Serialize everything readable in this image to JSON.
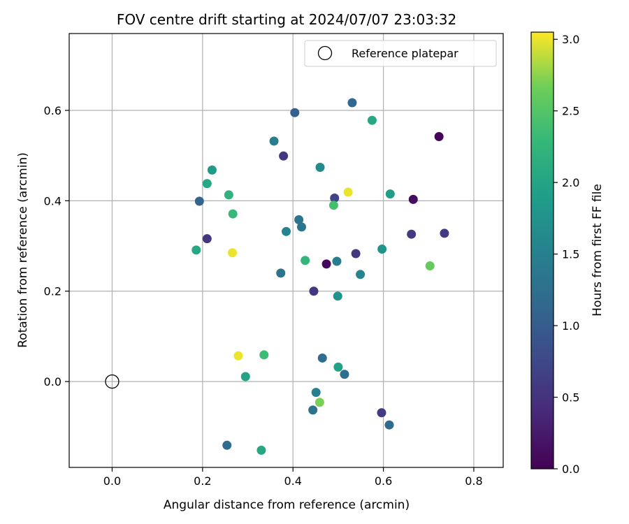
{
  "chart_data": {
    "type": "scatter",
    "title": "FOV centre drift starting at 2024/07/07 23:03:32",
    "xlabel": "Angular distance from reference (arcmin)",
    "ylabel": "Rotation from reference (arcmin)",
    "xlim": [
      -0.095,
      0.865
    ],
    "ylim": [
      -0.19,
      0.77
    ],
    "x_ticks": [
      0.0,
      0.2,
      0.4,
      0.6,
      0.8
    ],
    "x_tick_labels": [
      "0.0",
      "0.2",
      "0.4",
      "0.6",
      "0.8"
    ],
    "y_ticks": [
      0.0,
      0.2,
      0.4,
      0.6
    ],
    "y_tick_labels": [
      "0.0",
      "0.2",
      "0.4",
      "0.6"
    ],
    "grid": true,
    "legend": {
      "position": "upper-right",
      "entries": [
        {
          "label": "Reference platepar",
          "marker": "open-circle"
        }
      ]
    },
    "reference_point": {
      "x": 0.0,
      "y": 0.0
    },
    "colorbar": {
      "label": "Hours from first FF file",
      "colormap": "viridis",
      "range": [
        0.0,
        3.05
      ],
      "ticks": [
        0.0,
        0.5,
        1.0,
        1.5,
        2.0,
        2.5,
        3.0
      ],
      "tick_labels": [
        "0.0",
        "0.5",
        "1.0",
        "1.5",
        "2.0",
        "2.5",
        "3.0"
      ]
    },
    "points": [
      {
        "x": 0.723,
        "y": 0.542,
        "c": 0.05
      },
      {
        "x": 0.474,
        "y": 0.26,
        "c": 0.08
      },
      {
        "x": 0.666,
        "y": 0.403,
        "c": 0.12
      },
      {
        "x": 0.379,
        "y": 0.499,
        "c": 0.55
      },
      {
        "x": 0.735,
        "y": 0.328,
        "c": 0.6
      },
      {
        "x": 0.662,
        "y": 0.326,
        "c": 0.6
      },
      {
        "x": 0.21,
        "y": 0.316,
        "c": 0.55
      },
      {
        "x": 0.539,
        "y": 0.283,
        "c": 0.55
      },
      {
        "x": 0.446,
        "y": 0.2,
        "c": 0.55
      },
      {
        "x": 0.596,
        "y": -0.069,
        "c": 0.6
      },
      {
        "x": 0.492,
        "y": 0.406,
        "c": 0.7
      },
      {
        "x": 0.404,
        "y": 0.595,
        "c": 1.05
      },
      {
        "x": 0.531,
        "y": 0.617,
        "c": 1.15
      },
      {
        "x": 0.193,
        "y": 0.399,
        "c": 1.1
      },
      {
        "x": 0.254,
        "y": -0.141,
        "c": 1.2
      },
      {
        "x": 0.613,
        "y": -0.096,
        "c": 1.2
      },
      {
        "x": 0.465,
        "y": 0.052,
        "c": 1.2
      },
      {
        "x": 0.514,
        "y": 0.016,
        "c": 1.25
      },
      {
        "x": 0.444,
        "y": -0.063,
        "c": 1.3
      },
      {
        "x": 0.373,
        "y": 0.24,
        "c": 1.3
      },
      {
        "x": 0.413,
        "y": 0.358,
        "c": 1.35
      },
      {
        "x": 0.419,
        "y": 0.342,
        "c": 1.35
      },
      {
        "x": 0.358,
        "y": 0.532,
        "c": 1.45
      },
      {
        "x": 0.497,
        "y": 0.266,
        "c": 1.45
      },
      {
        "x": 0.451,
        "y": -0.024,
        "c": 1.5
      },
      {
        "x": 0.385,
        "y": 0.332,
        "c": 1.55
      },
      {
        "x": 0.549,
        "y": 0.237,
        "c": 1.55
      },
      {
        "x": 0.46,
        "y": 0.474,
        "c": 1.65
      },
      {
        "x": 0.597,
        "y": 0.293,
        "c": 1.75
      },
      {
        "x": 0.499,
        "y": 0.189,
        "c": 1.75
      },
      {
        "x": 0.221,
        "y": 0.468,
        "c": 1.85
      },
      {
        "x": 0.615,
        "y": 0.415,
        "c": 1.9
      },
      {
        "x": 0.5,
        "y": 0.032,
        "c": 1.95
      },
      {
        "x": 0.295,
        "y": 0.011,
        "c": 2.0
      },
      {
        "x": 0.575,
        "y": 0.578,
        "c": 2.05
      },
      {
        "x": 0.186,
        "y": 0.291,
        "c": 2.05
      },
      {
        "x": 0.21,
        "y": 0.438,
        "c": 2.05
      },
      {
        "x": 0.33,
        "y": -0.152,
        "c": 2.05
      },
      {
        "x": 0.258,
        "y": 0.413,
        "c": 2.2
      },
      {
        "x": 0.427,
        "y": 0.268,
        "c": 2.25
      },
      {
        "x": 0.267,
        "y": 0.371,
        "c": 2.3
      },
      {
        "x": 0.336,
        "y": 0.059,
        "c": 2.35
      },
      {
        "x": 0.49,
        "y": 0.39,
        "c": 2.4
      },
      {
        "x": 0.703,
        "y": 0.256,
        "c": 2.6
      },
      {
        "x": 0.459,
        "y": -0.046,
        "c": 2.7
      },
      {
        "x": 0.522,
        "y": 0.419,
        "c": 3.0
      },
      {
        "x": 0.266,
        "y": 0.285,
        "c": 3.0
      },
      {
        "x": 0.279,
        "y": 0.057,
        "c": 3.0
      }
    ]
  }
}
